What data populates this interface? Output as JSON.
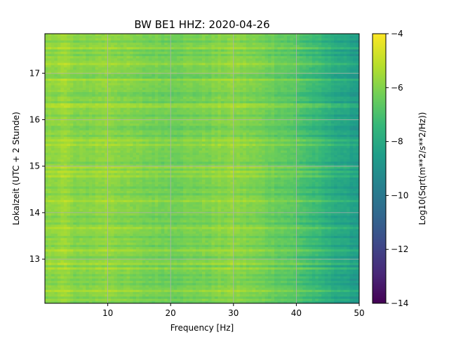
{
  "chart_data": {
    "type": "heatmap",
    "title": "BW BE1  HHZ: 2020-04-26",
    "xlabel": "Frequency [Hz]",
    "ylabel": "Lokalzeit (UTC + 2 Stunde)",
    "xlim": [
      0,
      50
    ],
    "ylim": [
      17.85,
      12.05
    ],
    "y_inverted": true,
    "grid": true,
    "x_ticks": [
      10,
      20,
      30,
      40,
      50
    ],
    "y_ticks": [
      13,
      14,
      15,
      16,
      17
    ],
    "colormap": "viridis",
    "colorbar": {
      "label": "Log10(Sqrt(m**2/s**2/Hz))",
      "range": [
        -14,
        -4
      ],
      "ticks": [
        -14,
        -12,
        -10,
        -8,
        -6,
        -4
      ]
    },
    "spectral_level_profile": {
      "description_free_values": true,
      "frequency_hz": [
        0,
        3,
        5,
        10,
        15,
        20,
        25,
        30,
        35,
        38,
        40,
        42,
        45,
        48,
        50
      ],
      "log10_psd": [
        -5.8,
        -5.4,
        -5.9,
        -5.6,
        -6.0,
        -6.1,
        -6.0,
        -5.7,
        -6.1,
        -6.4,
        -6.6,
        -7.0,
        -7.6,
        -8.1,
        -8.4
      ]
    },
    "colors": {
      "viridis": [
        "#440154",
        "#482878",
        "#3e4989",
        "#31688e",
        "#26828e",
        "#1f9e89",
        "#35b779",
        "#6ece58",
        "#b5de2b",
        "#fde725"
      ]
    }
  }
}
